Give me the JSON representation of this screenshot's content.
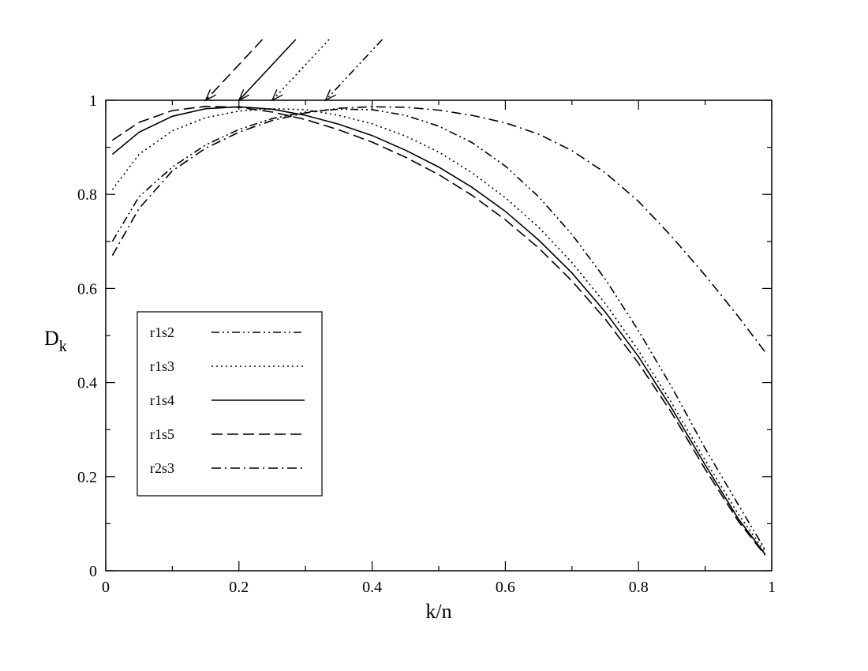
{
  "chart_data": {
    "type": "line",
    "xlabel": "k/n",
    "ylabel_main": "D",
    "ylabel_sub": "k",
    "xlim": [
      0,
      1
    ],
    "ylim": [
      0,
      1
    ],
    "x_ticks": [
      "0",
      "0.2",
      "0.4",
      "0.6",
      "0.8",
      "1"
    ],
    "y_ticks": [
      "0",
      "0.2",
      "0.4",
      "0.6",
      "0.8",
      "1"
    ],
    "grid": false,
    "legend_position": "lower-left",
    "series": [
      {
        "name": "r1s2",
        "dash": "dash-dot-dot",
        "x": [
          0.01,
          0.05,
          0.1,
          0.15,
          0.2,
          0.25,
          0.3,
          0.35,
          0.4,
          0.45,
          0.5,
          0.55,
          0.6,
          0.65,
          0.7,
          0.75,
          0.8,
          0.85,
          0.9,
          0.95,
          0.99
        ],
        "y": [
          0.7,
          0.795,
          0.858,
          0.905,
          0.938,
          0.961,
          0.975,
          0.981,
          0.98,
          0.968,
          0.945,
          0.91,
          0.86,
          0.795,
          0.715,
          0.62,
          0.51,
          0.39,
          0.26,
          0.14,
          0.045
        ]
      },
      {
        "name": "r1s3",
        "dash": "dotted",
        "x": [
          0.01,
          0.05,
          0.1,
          0.15,
          0.2,
          0.25,
          0.3,
          0.35,
          0.4,
          0.45,
          0.5,
          0.55,
          0.6,
          0.65,
          0.7,
          0.75,
          0.8,
          0.85,
          0.9,
          0.95,
          0.99
        ],
        "y": [
          0.81,
          0.885,
          0.935,
          0.963,
          0.977,
          0.982,
          0.98,
          0.968,
          0.95,
          0.924,
          0.89,
          0.846,
          0.793,
          0.73,
          0.655,
          0.568,
          0.468,
          0.356,
          0.235,
          0.12,
          0.04
        ]
      },
      {
        "name": "r1s4",
        "dash": "solid",
        "x": [
          0.01,
          0.05,
          0.1,
          0.15,
          0.2,
          0.25,
          0.3,
          0.35,
          0.4,
          0.45,
          0.5,
          0.55,
          0.6,
          0.65,
          0.7,
          0.75,
          0.8,
          0.85,
          0.9,
          0.95,
          0.99
        ],
        "y": [
          0.885,
          0.932,
          0.966,
          0.982,
          0.986,
          0.981,
          0.968,
          0.949,
          0.925,
          0.894,
          0.858,
          0.815,
          0.764,
          0.703,
          0.633,
          0.55,
          0.455,
          0.345,
          0.225,
          0.11,
          0.035
        ]
      },
      {
        "name": "r1s5",
        "dash": "dashed",
        "x": [
          0.01,
          0.05,
          0.1,
          0.15,
          0.2,
          0.25,
          0.3,
          0.35,
          0.4,
          0.45,
          0.5,
          0.55,
          0.6,
          0.65,
          0.7,
          0.75,
          0.8,
          0.85,
          0.9,
          0.95,
          0.99
        ],
        "y": [
          0.915,
          0.953,
          0.978,
          0.987,
          0.985,
          0.975,
          0.959,
          0.937,
          0.911,
          0.879,
          0.842,
          0.798,
          0.746,
          0.686,
          0.616,
          0.535,
          0.441,
          0.335,
          0.216,
          0.105,
          0.033
        ]
      },
      {
        "name": "r2s3",
        "dash": "dash-dot",
        "x": [
          0.01,
          0.05,
          0.1,
          0.15,
          0.2,
          0.25,
          0.3,
          0.35,
          0.4,
          0.45,
          0.5,
          0.55,
          0.6,
          0.65,
          0.7,
          0.75,
          0.8,
          0.85,
          0.9,
          0.95,
          0.99
        ],
        "y": [
          0.67,
          0.77,
          0.85,
          0.898,
          0.932,
          0.957,
          0.973,
          0.983,
          0.986,
          0.985,
          0.979,
          0.968,
          0.952,
          0.928,
          0.893,
          0.846,
          0.785,
          0.71,
          0.628,
          0.54,
          0.465
        ]
      }
    ],
    "arrows": [
      {
        "series": "r1s5",
        "x": 0.15,
        "dash": "dashed"
      },
      {
        "series": "r1s4",
        "x": 0.2,
        "dash": "solid"
      },
      {
        "series": "r1s3",
        "x": 0.25,
        "dash": "dotted"
      },
      {
        "series": "r1s2",
        "x": 0.33,
        "dash": "dash-dot-dot"
      }
    ]
  }
}
